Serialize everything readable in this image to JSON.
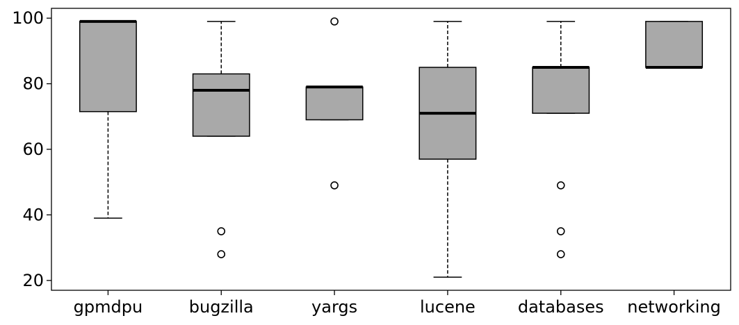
{
  "chart_data": {
    "type": "box",
    "title": "",
    "xlabel": "",
    "ylabel": "",
    "ylim": [
      17,
      103
    ],
    "yticks": [
      20,
      40,
      60,
      80,
      100
    ],
    "grid": false,
    "legend": "none",
    "colors": {
      "box_fill": "#a9a9a9",
      "edge": "#000000"
    },
    "categories": [
      "gpmdpu",
      "bugzilla",
      "yargs",
      "lucene",
      "databases",
      "networking"
    ],
    "boxes": [
      {
        "category": "gpmdpu",
        "whisker_low": 39,
        "q1": 71.5,
        "median": 99,
        "q3": 99,
        "whisker_high": 99,
        "outliers": []
      },
      {
        "category": "bugzilla",
        "whisker_low": 64,
        "q1": 64,
        "median": 78,
        "q3": 83,
        "whisker_high": 99,
        "outliers": [
          35,
          28
        ]
      },
      {
        "category": "yargs",
        "whisker_low": 69,
        "q1": 69,
        "median": 79,
        "q3": 79,
        "whisker_high": 79,
        "outliers": [
          99,
          49
        ]
      },
      {
        "category": "lucene",
        "whisker_low": 21,
        "q1": 57,
        "median": 71,
        "q3": 85,
        "whisker_high": 99,
        "outliers": []
      },
      {
        "category": "databases",
        "whisker_low": 71,
        "q1": 71,
        "median": 85,
        "q3": 85,
        "whisker_high": 99,
        "outliers": [
          49,
          35,
          28
        ]
      },
      {
        "category": "networking",
        "whisker_low": 85,
        "q1": 85,
        "median": 85,
        "q3": 99,
        "whisker_high": 99,
        "outliers": []
      }
    ]
  }
}
